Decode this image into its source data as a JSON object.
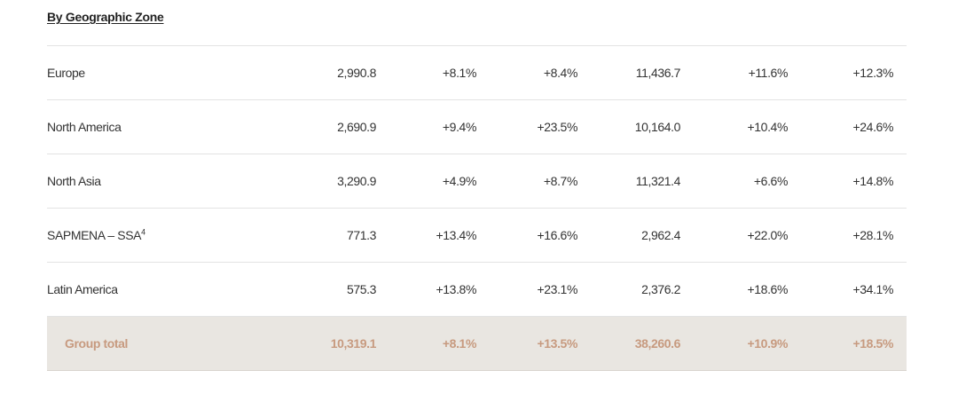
{
  "section": {
    "title": "By Geographic Zone"
  },
  "rows": [
    {
      "name": "Europe",
      "values": [
        "2,990.8",
        "+8.1%",
        "+8.4%",
        "11,436.7",
        "+11.6%",
        "+12.3%"
      ]
    },
    {
      "name": "North America",
      "values": [
        "2,690.9",
        "+9.4%",
        "+23.5%",
        "10,164.0",
        "+10.4%",
        "+24.6%"
      ]
    },
    {
      "name": "North Asia",
      "values": [
        "3,290.9",
        "+4.9%",
        "+8.7%",
        "11,321.4",
        "+6.6%",
        "+14.8%"
      ]
    },
    {
      "name": "SAPMENA – SSA",
      "footnote": "4",
      "values": [
        "771.3",
        "+13.4%",
        "+16.6%",
        "2,962.4",
        "+22.0%",
        "+28.1%"
      ]
    },
    {
      "name": "Latin America",
      "values": [
        "575.3",
        "+13.8%",
        "+23.1%",
        "2,376.2",
        "+18.6%",
        "+34.1%"
      ]
    }
  ],
  "total": {
    "name": "Group total",
    "values": [
      "10,319.1",
      "+8.1%",
      "+13.5%",
      "38,260.6",
      "+10.9%",
      "+18.5%"
    ]
  },
  "colors": {
    "text": "#333333",
    "divider": "#e3e3e3",
    "total_background": "#e9e6e1",
    "total_text": "#c79a7f"
  }
}
